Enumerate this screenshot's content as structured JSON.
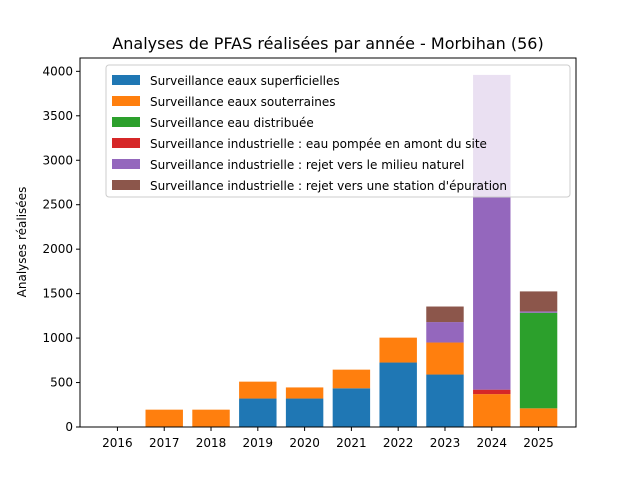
{
  "chart_data": {
    "type": "bar",
    "stacked": true,
    "title": "Analyses de PFAS réalisées par année - Morbihan (56)",
    "xlabel": "",
    "ylabel": "Analyses réalisées",
    "ylim": [
      0,
      4150
    ],
    "yticks": [
      0,
      500,
      1000,
      1500,
      2000,
      2500,
      3000,
      3500,
      4000
    ],
    "categories": [
      "2016",
      "2017",
      "2018",
      "2019",
      "2020",
      "2021",
      "2022",
      "2023",
      "2024",
      "2025"
    ],
    "legend_position": "top-left",
    "grid": false,
    "series": [
      {
        "name": "Surveillance eaux superficielles",
        "color": "#1f77b4",
        "values": [
          0,
          0,
          0,
          320,
          320,
          435,
          725,
          590,
          0,
          0
        ]
      },
      {
        "name": "Surveillance eaux souterraines",
        "color": "#ff7f0e",
        "values": [
          0,
          195,
          195,
          190,
          125,
          210,
          280,
          360,
          370,
          210
        ]
      },
      {
        "name": "Surveillance eau distribuée",
        "color": "#2ca02c",
        "values": [
          0,
          0,
          0,
          0,
          0,
          0,
          0,
          0,
          0,
          1075
        ]
      },
      {
        "name": "Surveillance industrielle : eau pompée en amont du site",
        "color": "#d62728",
        "values": [
          0,
          0,
          0,
          0,
          0,
          0,
          0,
          0,
          50,
          0
        ]
      },
      {
        "name": "Surveillance industrielle : rejet vers le milieu naturel",
        "color": "#9467bd",
        "values": [
          0,
          0,
          0,
          0,
          0,
          0,
          0,
          230,
          3540,
          15
        ]
      },
      {
        "name": "Surveillance industrielle : rejet vers une station d'épuration",
        "color": "#8c564b",
        "values": [
          0,
          0,
          0,
          0,
          0,
          0,
          0,
          175,
          0,
          225
        ]
      }
    ]
  }
}
